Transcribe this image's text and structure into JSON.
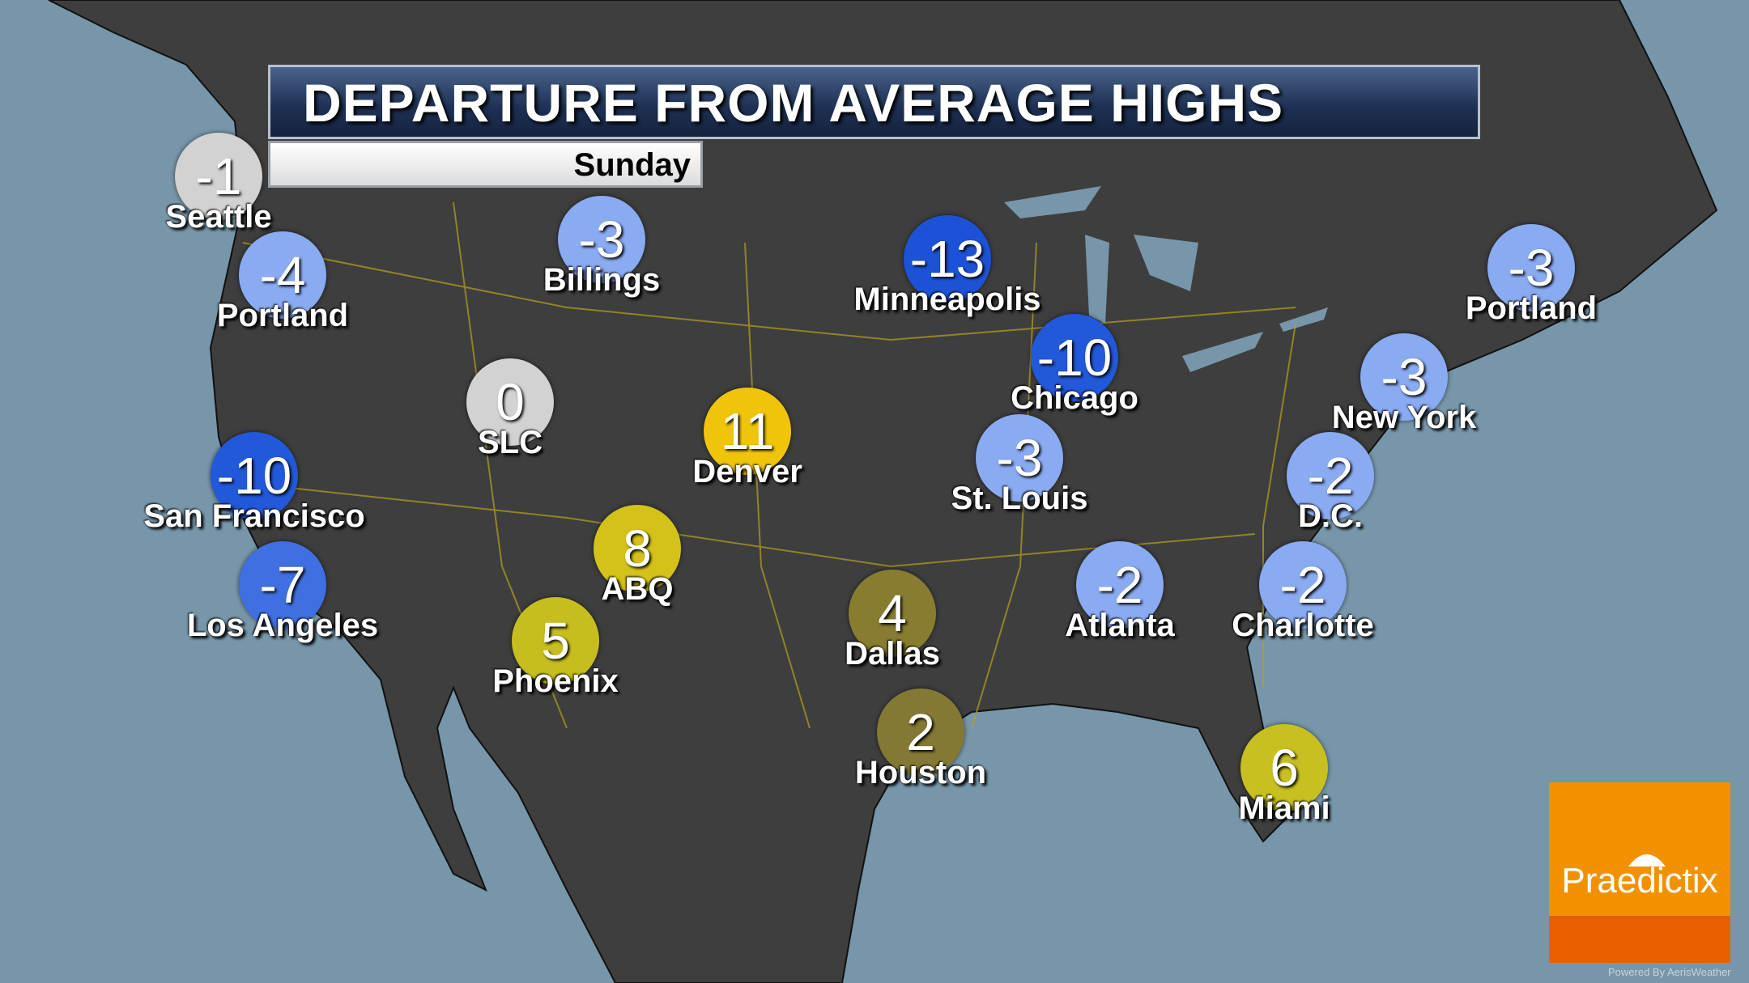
{
  "title": "DEPARTURE FROM AVERAGE HIGHS",
  "day": "Sunday",
  "logo": {
    "text": "Praedictix",
    "colors": {
      "top": "#f29100",
      "bottom": "#e85f00"
    }
  },
  "powered_by": "Powered By AerisWeather",
  "colors": {
    "ocean": "#7896aa",
    "land": "#3e3e3e",
    "roads": "#b8a020"
  },
  "cities": [
    {
      "name": "Seattle",
      "value": "-1",
      "color": "#d2d2d2"
    },
    {
      "name": "Portland",
      "value": "-4",
      "color": "#8aaaf2"
    },
    {
      "name": "Billings",
      "value": "-3",
      "color": "#8aaaf2"
    },
    {
      "name": "Minneapolis",
      "value": "-13",
      "color": "#1d52d6"
    },
    {
      "name": "Portland",
      "value": "-3",
      "color": "#8aaaf2"
    },
    {
      "name": "Chicago",
      "value": "-10",
      "color": "#2258da"
    },
    {
      "name": "New York",
      "value": "-3",
      "color": "#8aaaf2"
    },
    {
      "name": "SLC",
      "value": "0",
      "color": "#d2d2d2"
    },
    {
      "name": "Denver",
      "value": "11",
      "color": "#f0c40a"
    },
    {
      "name": "San Francisco",
      "value": "-10",
      "color": "#2258da"
    },
    {
      "name": "St. Louis",
      "value": "-3",
      "color": "#8aaaf2"
    },
    {
      "name": "D.C.",
      "value": "-2",
      "color": "#8aaaf2"
    },
    {
      "name": "ABQ",
      "value": "8",
      "color": "#d4c21a"
    },
    {
      "name": "Los Angeles",
      "value": "-7",
      "color": "#3f6fe0"
    },
    {
      "name": "Atlanta",
      "value": "-2",
      "color": "#8aaaf2"
    },
    {
      "name": "Charlotte",
      "value": "-2",
      "color": "#8aaaf2"
    },
    {
      "name": "Dallas",
      "value": "4",
      "color": "#877c30"
    },
    {
      "name": "Phoenix",
      "value": "5",
      "color": "#c6be1e"
    },
    {
      "name": "Houston",
      "value": "2",
      "color": "#847934"
    },
    {
      "name": "Miami",
      "value": "6",
      "color": "#c8c020"
    }
  ]
}
